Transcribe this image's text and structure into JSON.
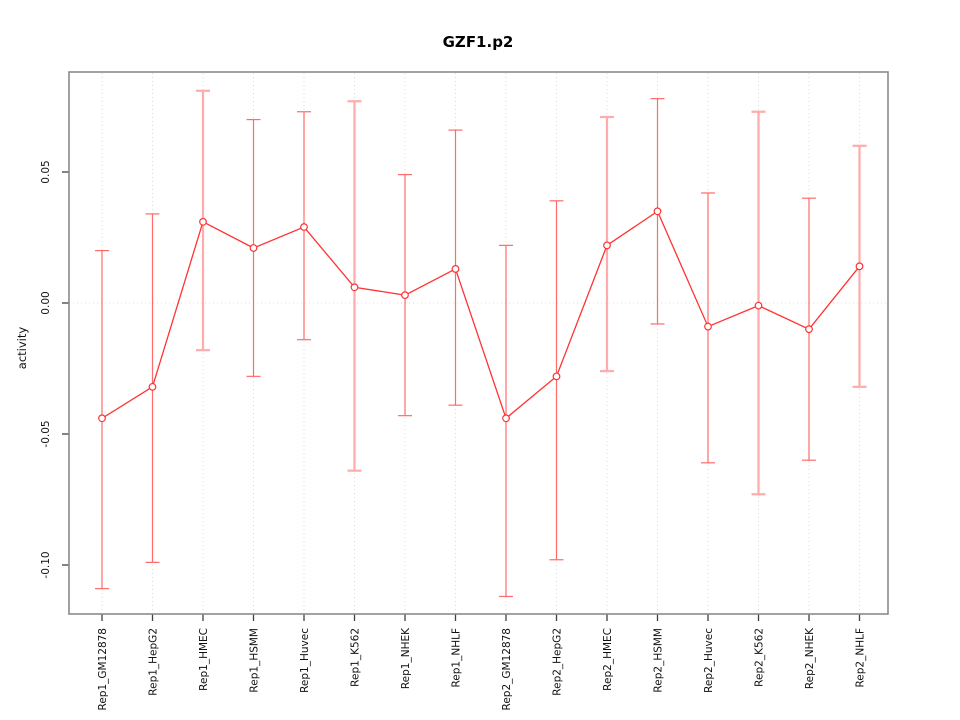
{
  "colors": {
    "series_line": "#ff3333",
    "error_bar_dark": "#ff6b6b",
    "error_bar_light": "#ffabab",
    "grid_dotted": "#dadada",
    "plot_border": "#8a8a8a",
    "tick": "#404040",
    "text": "#111111"
  },
  "chart_data": {
    "type": "line",
    "title": "GZF1.p2",
    "xlabel": "",
    "ylabel": "activity",
    "legend_position": "none",
    "marker": "open-circle",
    "grid": {
      "vertical_dotted_per_category": true,
      "dotted_zero_line": true
    },
    "ylim": [
      -0.119,
      0.089
    ],
    "yticks": [
      0.05,
      0,
      -0.05,
      -0.1
    ],
    "categories": [
      "Rep1_GM12878",
      "Rep1_HepG2",
      "Rep1_HMEC",
      "Rep1_HSMM",
      "Rep1_Huvec",
      "Rep1_K562",
      "Rep1_NHEK",
      "Rep1_NHLF",
      "Rep2_GM12878",
      "Rep2_HepG2",
      "Rep2_HMEC",
      "Rep2_HSMM",
      "Rep2_Huvec",
      "Rep2_K562",
      "Rep2_NHEK",
      "Rep2_NHLF"
    ],
    "series": [
      {
        "name": "activity",
        "values": [
          -0.044,
          -0.032,
          0.031,
          0.021,
          0.029,
          0.006,
          0.003,
          0.013,
          -0.044,
          -0.028,
          0.022,
          0.035,
          -0.009,
          -0.001,
          -0.01,
          0.014
        ]
      }
    ],
    "error_bars": {
      "upper": [
        0.02,
        0.034,
        0.081,
        0.07,
        0.073,
        0.077,
        0.049,
        0.066,
        0.022,
        0.039,
        0.071,
        0.078,
        0.042,
        0.073,
        0.04,
        0.06
      ],
      "lower": [
        -0.109,
        -0.099,
        -0.018,
        -0.028,
        -0.014,
        -0.064,
        -0.043,
        -0.039,
        -0.112,
        -0.098,
        -0.026,
        -0.008,
        -0.061,
        -0.073,
        -0.06,
        -0.032
      ]
    },
    "error_bar_emphasis": [
      "dark",
      "dark",
      "light",
      "dark",
      "dark",
      "light",
      "dark",
      "dark",
      "dark",
      "dark",
      "light",
      "dark",
      "dark",
      "light",
      "dark",
      "light"
    ]
  }
}
